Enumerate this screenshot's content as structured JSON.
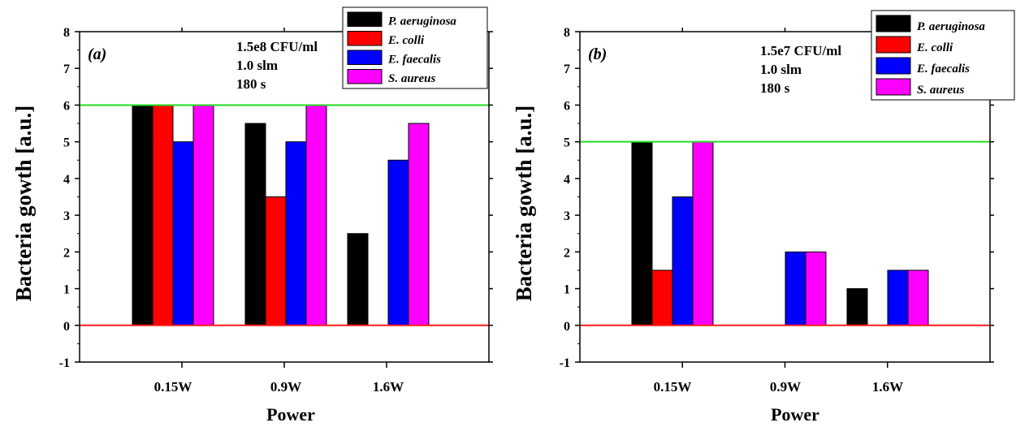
{
  "chart_data": [
    {
      "type": "bar",
      "panel_label": "(a)",
      "xlabel": "Power",
      "ylabel": "Bacteria gowth [a.u.]",
      "categories": [
        "0.15W",
        "0.9W",
        "1.6W"
      ],
      "ylim": [
        -1,
        8
      ],
      "yticks": [
        "-1",
        "0",
        "1",
        "2",
        "3",
        "4",
        "5",
        "6",
        "7",
        "8"
      ],
      "annotations": [
        "1.5e8 CFU/ml",
        "1.0 slm",
        "180 s"
      ],
      "reference_lines": [
        {
          "value": 6,
          "color": "#22dd22"
        },
        {
          "value": 0,
          "color": "#ff1a1a"
        }
      ],
      "legend_position": "top-right",
      "series": [
        {
          "name": "P. aeruginosa",
          "color": "#000000",
          "values": [
            6,
            5.5,
            2.5
          ]
        },
        {
          "name": "E. colli",
          "color": "#ff0000",
          "values": [
            6,
            3.5,
            0
          ]
        },
        {
          "name": "E. faecalis",
          "color": "#0000ff",
          "values": [
            5,
            5,
            4.5
          ]
        },
        {
          "name": "S. aureus",
          "color": "#ff00ff",
          "values": [
            6,
            6,
            5.5
          ]
        }
      ],
      "grid": false
    },
    {
      "type": "bar",
      "panel_label": "(b)",
      "xlabel": "Power",
      "ylabel": "Bacteria gowth [a.u.]",
      "categories": [
        "0.15W",
        "0.9W",
        "1.6W"
      ],
      "ylim": [
        -1,
        8
      ],
      "yticks": [
        "-1",
        "0",
        "1",
        "2",
        "3",
        "4",
        "5",
        "6",
        "7",
        "8"
      ],
      "annotations": [
        "1.5e7 CFU/ml",
        "1.0 slm",
        "180 s"
      ],
      "reference_lines": [
        {
          "value": 5,
          "color": "#22dd22"
        },
        {
          "value": 0,
          "color": "#ff1a1a"
        }
      ],
      "legend_position": "top-right",
      "series": [
        {
          "name": "P. aeruginosa",
          "color": "#000000",
          "values": [
            5,
            0,
            1
          ]
        },
        {
          "name": "E. colli",
          "color": "#ff0000",
          "values": [
            1.5,
            0,
            0
          ]
        },
        {
          "name": "E. faecalis",
          "color": "#0000ff",
          "values": [
            3.5,
            2,
            1.5
          ]
        },
        {
          "name": "S. aureus",
          "color": "#ff00ff",
          "values": [
            5,
            2,
            1.5
          ]
        }
      ],
      "grid": false
    }
  ]
}
